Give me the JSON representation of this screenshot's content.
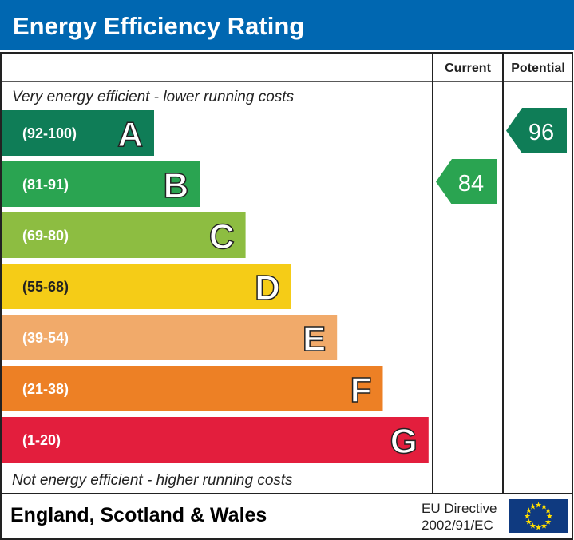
{
  "title": "Energy Efficiency Rating",
  "chart_data": {
    "type": "bar",
    "columns": {
      "current": "Current",
      "potential": "Potential"
    },
    "top_note": "Very energy efficient - lower running costs",
    "bottom_note": "Not energy efficient - higher running costs",
    "bands": [
      {
        "letter": "A",
        "range": "(92-100)",
        "color": "#0f7d57"
      },
      {
        "letter": "B",
        "range": "(81-91)",
        "color": "#2aa451"
      },
      {
        "letter": "C",
        "range": "(69-80)",
        "color": "#8dbd41"
      },
      {
        "letter": "D",
        "range": "(55-68)",
        "color": "#f5cc17"
      },
      {
        "letter": "E",
        "range": "(39-54)",
        "color": "#f1aa6a"
      },
      {
        "letter": "F",
        "range": "(21-38)",
        "color": "#ed8025"
      },
      {
        "letter": "G",
        "range": "(1-20)",
        "color": "#e31e3d"
      }
    ],
    "current": {
      "value": "84",
      "band": "B",
      "color": "#2aa451"
    },
    "potential": {
      "value": "96",
      "band": "A",
      "color": "#0f7d57"
    }
  },
  "footer": {
    "region": "England, Scotland & Wales",
    "directive_line1": "EU Directive",
    "directive_line2": "2002/91/EC"
  },
  "colors": {
    "title_bar": "#0067b1",
    "eu_flag": "#0f3a80",
    "eu_star": "#ffdd00"
  }
}
